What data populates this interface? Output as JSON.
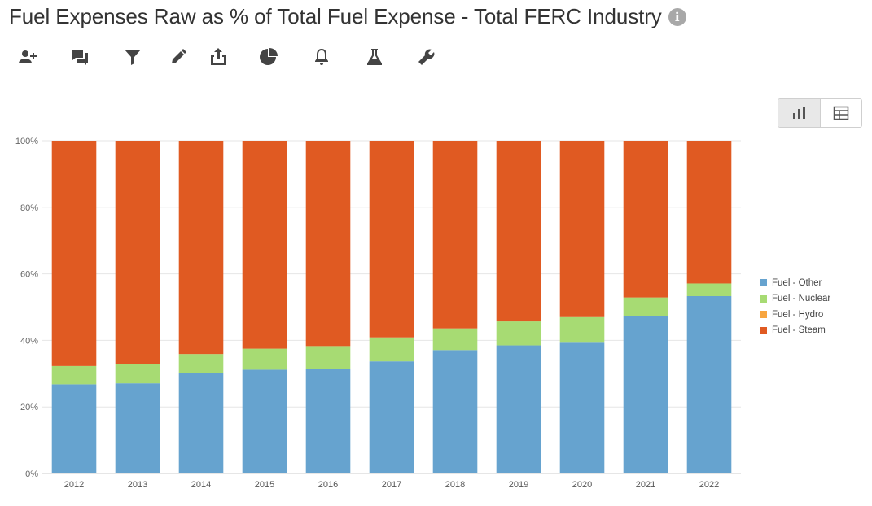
{
  "header": {
    "title": "Fuel Expenses Raw as % of Total Fuel Expense - Total FERC Industry",
    "info_icon": "info-circle-icon"
  },
  "toolbar": {
    "icons": [
      "add-user-icon",
      "comments-icon",
      "filter-icon",
      "pencil-icon",
      "share-icon",
      "pie-chart-icon",
      "bell-icon",
      "flask-icon",
      "wrench-icon"
    ]
  },
  "view_toggle": {
    "options": [
      "bar-chart-icon",
      "table-icon"
    ],
    "active": "bar-chart-icon"
  },
  "chart_data": {
    "type": "bar",
    "stacked": true,
    "categories": [
      "2012",
      "2013",
      "2014",
      "2015",
      "2016",
      "2017",
      "2018",
      "2019",
      "2020",
      "2021",
      "2022"
    ],
    "series": [
      {
        "name": "Fuel - Other",
        "color": "#66a3cf",
        "values": [
          26.8,
          27.1,
          30.3,
          31.2,
          31.3,
          33.7,
          37.1,
          38.5,
          39.3,
          47.3,
          53.3
        ]
      },
      {
        "name": "Fuel - Nuclear",
        "color": "#a7db73",
        "values": [
          5.5,
          5.8,
          5.6,
          6.3,
          7.0,
          7.2,
          6.5,
          7.2,
          7.7,
          5.6,
          3.8
        ]
      },
      {
        "name": "Fuel - Hydro",
        "color": "#f7a540",
        "values": [
          0,
          0,
          0,
          0,
          0,
          0,
          0,
          0,
          0,
          0,
          0
        ]
      },
      {
        "name": "Fuel - Steam",
        "color": "#e05a22",
        "values": [
          67.7,
          67.1,
          64.1,
          62.5,
          61.7,
          59.1,
          56.4,
          54.3,
          53.0,
          47.1,
          42.9
        ]
      }
    ],
    "y_ticks": [
      "0%",
      "20%",
      "40%",
      "60%",
      "80%",
      "100%"
    ],
    "ylim": [
      0,
      100
    ],
    "grid": true,
    "legend_position": "right",
    "title": "",
    "xlabel": "",
    "ylabel": ""
  }
}
